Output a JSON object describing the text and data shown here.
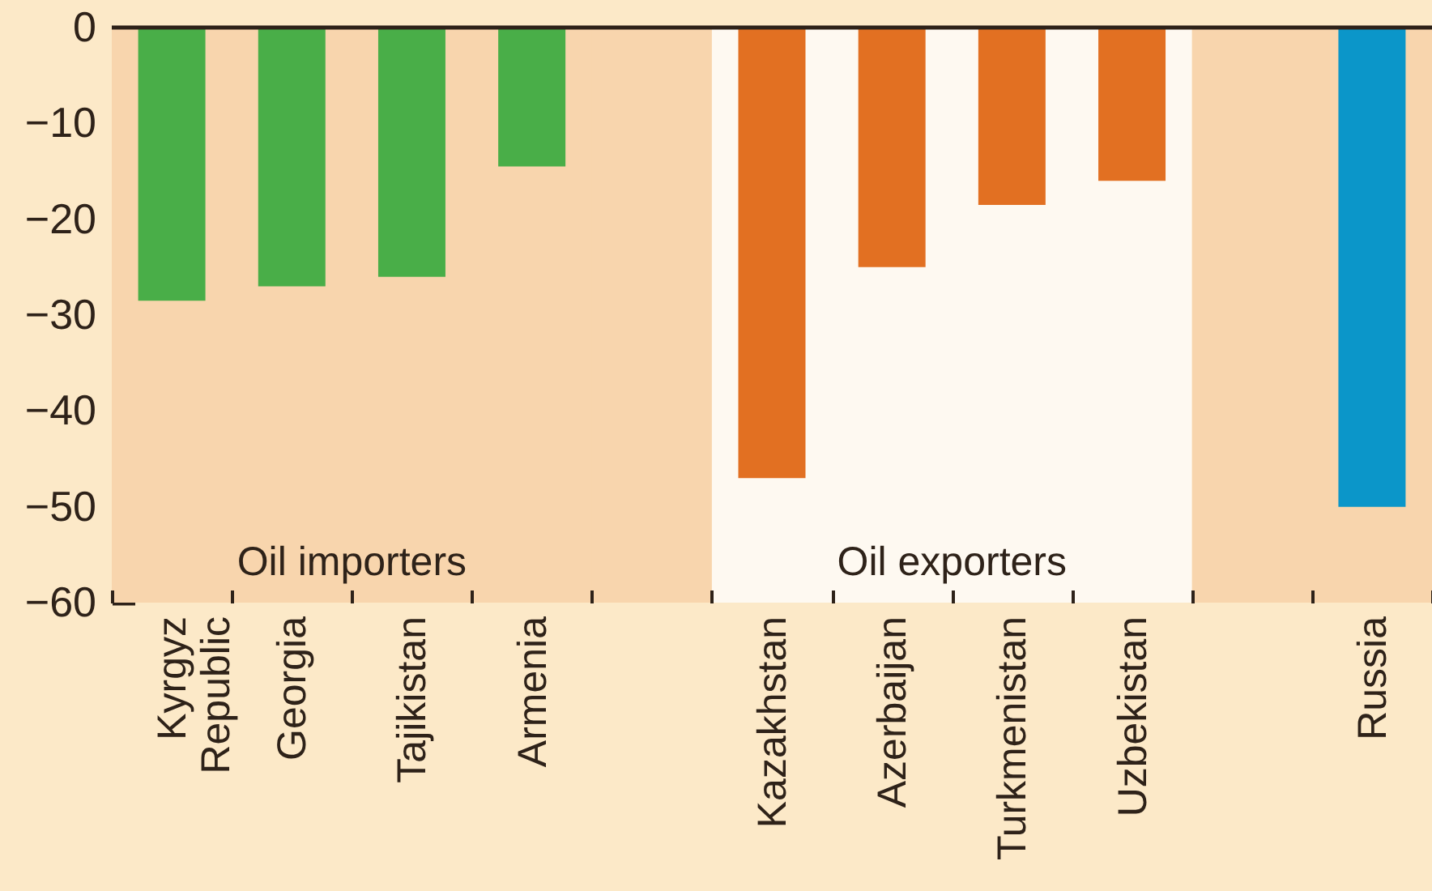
{
  "chart_data": {
    "type": "bar",
    "categories": [
      "Kyrgyz Republic",
      "Georgia",
      "Tajikistan",
      "Armenia",
      null,
      "Kazakhstan",
      "Azerbaijan",
      "Turkmenistan",
      "Uzbekistan",
      null,
      "Russia"
    ],
    "values": [
      -28.5,
      -27,
      -26,
      -14.5,
      null,
      -47,
      -25,
      -18.5,
      -16,
      null,
      -50
    ],
    "colors": [
      "#49ae48",
      "#49ae48",
      "#49ae48",
      "#49ae48",
      null,
      "#e27022",
      "#e27022",
      "#e27022",
      "#e27022",
      null,
      "#0b96c9"
    ],
    "ylim": [
      -60,
      0
    ],
    "yticks": [
      -60,
      -50,
      -40,
      -30,
      -20,
      -10,
      0
    ],
    "grid": false,
    "ref_lines": [
      {
        "axis": "y",
        "value": 0,
        "color": "#2e2219"
      }
    ],
    "bands": [
      {
        "axis": "x",
        "from": "Kyrgyz Republic",
        "to": "Armenia",
        "label": "Oil importers",
        "color": "#f8d5ad"
      },
      {
        "axis": "x",
        "from": "Kazakhstan",
        "to": "Uzbekistan",
        "label": "Oil exporters",
        "color": "#fef9f1"
      }
    ]
  }
}
